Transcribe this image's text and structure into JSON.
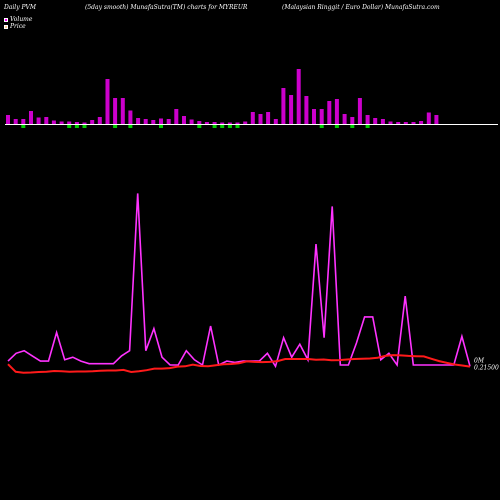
{
  "header": {
    "left": "Daily PVM",
    "center": "(5day smooth) MunafaSutra(TM) charts for MYREUR",
    "right": "(Malaysian  Ringgit / Euro  Dollar) MunafaSutra.com"
  },
  "legend": {
    "volume_label": "Volume",
    "volume_color": "#ff00ff",
    "price_label": "Price",
    "price_color": "#ffcc99"
  },
  "chart_data": {
    "type": "line",
    "title": "(5day smooth) MunafaSutra(TM) charts for MYREUR",
    "price_label_text": "0.21500",
    "price_label_prefix": "0M",
    "colors": {
      "volume_bar_up": "#cc00cc",
      "volume_bar_down": "#00cc00",
      "volume_line": "#ff33ff",
      "price_line": "#ff1a1a",
      "axis_line": "#ffffff"
    },
    "volume_bars": [
      {
        "v": 1.8,
        "d": "up"
      },
      {
        "v": 1.0,
        "d": "up"
      },
      {
        "v": 1.0,
        "d": "down"
      },
      {
        "v": 2.6,
        "d": "up"
      },
      {
        "v": 1.3,
        "d": "up"
      },
      {
        "v": 1.4,
        "d": "up"
      },
      {
        "v": 0.7,
        "d": "up"
      },
      {
        "v": 0.5,
        "d": "up"
      },
      {
        "v": 0.5,
        "d": "down"
      },
      {
        "v": 0.4,
        "d": "down"
      },
      {
        "v": 0.3,
        "d": "down"
      },
      {
        "v": 0.8,
        "d": "up"
      },
      {
        "v": 1.4,
        "d": "up"
      },
      {
        "v": 9.0,
        "d": "up"
      },
      {
        "v": 5.2,
        "d": "down"
      },
      {
        "v": 5.2,
        "d": "up"
      },
      {
        "v": 2.7,
        "d": "down"
      },
      {
        "v": 1.2,
        "d": "up"
      },
      {
        "v": 1.0,
        "d": "up"
      },
      {
        "v": 0.8,
        "d": "up"
      },
      {
        "v": 1.1,
        "d": "down"
      },
      {
        "v": 1.0,
        "d": "up"
      },
      {
        "v": 3.0,
        "d": "up"
      },
      {
        "v": 1.6,
        "d": "up"
      },
      {
        "v": 0.9,
        "d": "up"
      },
      {
        "v": 0.6,
        "d": "down"
      },
      {
        "v": 0.4,
        "d": "up"
      },
      {
        "v": 0.4,
        "d": "down"
      },
      {
        "v": 0.3,
        "d": "down"
      },
      {
        "v": 0.3,
        "d": "down"
      },
      {
        "v": 0.3,
        "d": "down"
      },
      {
        "v": 0.5,
        "d": "up"
      },
      {
        "v": 2.4,
        "d": "up"
      },
      {
        "v": 2.0,
        "d": "up"
      },
      {
        "v": 2.4,
        "d": "up"
      },
      {
        "v": 1.0,
        "d": "up"
      },
      {
        "v": 7.2,
        "d": "up"
      },
      {
        "v": 5.8,
        "d": "up"
      },
      {
        "v": 11.0,
        "d": "up"
      },
      {
        "v": 5.6,
        "d": "up"
      },
      {
        "v": 3.0,
        "d": "up"
      },
      {
        "v": 3.0,
        "d": "down"
      },
      {
        "v": 4.6,
        "d": "up"
      },
      {
        "v": 5.0,
        "d": "down"
      },
      {
        "v": 2.0,
        "d": "up"
      },
      {
        "v": 1.4,
        "d": "down"
      },
      {
        "v": 5.2,
        "d": "up"
      },
      {
        "v": 1.8,
        "d": "down"
      },
      {
        "v": 1.2,
        "d": "up"
      },
      {
        "v": 1.0,
        "d": "up"
      },
      {
        "v": 0.5,
        "d": "up"
      },
      {
        "v": 0.4,
        "d": "up"
      },
      {
        "v": 0.4,
        "d": "up"
      },
      {
        "v": 0.4,
        "d": "up"
      },
      {
        "v": 0.6,
        "d": "up"
      },
      {
        "v": 2.3,
        "d": "up"
      },
      {
        "v": 1.8,
        "d": "up"
      }
    ],
    "volume_line": [
      6.5,
      9.5,
      10.5,
      8.5,
      6.5,
      6.5,
      17.5,
      7.0,
      8.0,
      6.5,
      5.5,
      5.5,
      5.5,
      5.5,
      8.5,
      10.5,
      71.0,
      10.5,
      19.0,
      8.0,
      5.0,
      5.0,
      10.5,
      7.0,
      5.0,
      20.0,
      5.0,
      6.5,
      6.0,
      6.5,
      6.5,
      6.5,
      9.5,
      4.5,
      15.5,
      8.0,
      13.0,
      7.0,
      51.5,
      15.5,
      66.0,
      5.0,
      5.0,
      13.5,
      23.5,
      23.5,
      7.0,
      9.5,
      5.0,
      31.5,
      5.0,
      5.0,
      5.0,
      5.0,
      5.0,
      5.0,
      16.0,
      4.5
    ],
    "price_line": [
      5.3,
      2.4,
      2.0,
      2.1,
      2.3,
      2.4,
      2.7,
      2.6,
      2.4,
      2.5,
      2.5,
      2.6,
      2.8,
      2.9,
      2.9,
      3.1,
      2.3,
      2.6,
      3.0,
      3.6,
      3.6,
      3.8,
      4.4,
      4.5,
      5.1,
      4.6,
      4.5,
      4.9,
      5.3,
      5.4,
      5.7,
      6.4,
      6.2,
      6.1,
      6.2,
      6.5,
      7.3,
      7.3,
      7.3,
      7.3,
      7.0,
      7.1,
      6.8,
      6.9,
      7.1,
      7.3,
      7.4,
      7.5,
      7.8,
      8.5,
      8.8,
      8.7,
      8.5,
      8.4,
      8.3,
      7.4,
      6.5,
      5.8,
      5.2,
      4.8,
      4.4
    ]
  }
}
